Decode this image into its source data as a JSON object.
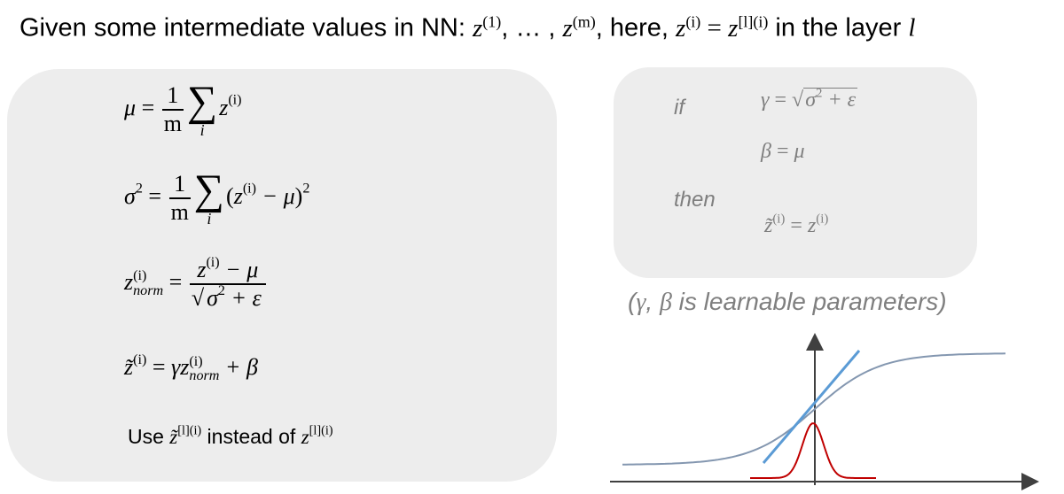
{
  "title": {
    "prefix": "Given some intermediate values in NN: ",
    "z": "z",
    "sup1": "(1)",
    "dots": ", … , ",
    "supm": "(m)",
    "mid": ", here, ",
    "supi": "(i)",
    "eq": " = ",
    "suplayer": "[l](i)",
    "in_layer": " in the layer ",
    "l": "l"
  },
  "equations": {
    "mu_lhs": "μ",
    "eq": "=",
    "one": "1",
    "m": "m",
    "sum_symbol": "∑",
    "sum_index": "i",
    "z": "z",
    "sup_i": "(i)",
    "sigma_sq": "σ",
    "sup_2": "2",
    "open_paren": "(",
    "minus_mu": " − μ",
    "close_paren_sq": ")",
    "norm": "norm",
    "epsilon_term": " + ε",
    "ztilde": "z̃",
    "gamma": "γ",
    "plus_beta": " + β"
  },
  "use_line": {
    "use": "Use ",
    "ztilde": "z̃",
    "sup_layer": "[l](i)",
    "instead_of": " instead of ",
    "z": "z"
  },
  "condition_box": {
    "if_label": "if",
    "gamma": "γ",
    "eq": " = ",
    "sqrt_content": "σ",
    "sup_2": "2",
    "plus_eps": " + ε",
    "beta": "β",
    "mu": "μ",
    "then_label": "then",
    "ztilde": "z̃",
    "sup_i": "(i)",
    "z": "z"
  },
  "note": {
    "open": "(",
    "gamma": "γ",
    "comma": ", ",
    "beta": "β",
    "text": " is learnable parameters)"
  },
  "colors": {
    "panel": "#ededed",
    "gray_text": "#7f7f7f",
    "sigmoid": "#8497b0",
    "tangent": "#5b9bd5",
    "gaussian": "#c00000",
    "axis": "#404040"
  }
}
